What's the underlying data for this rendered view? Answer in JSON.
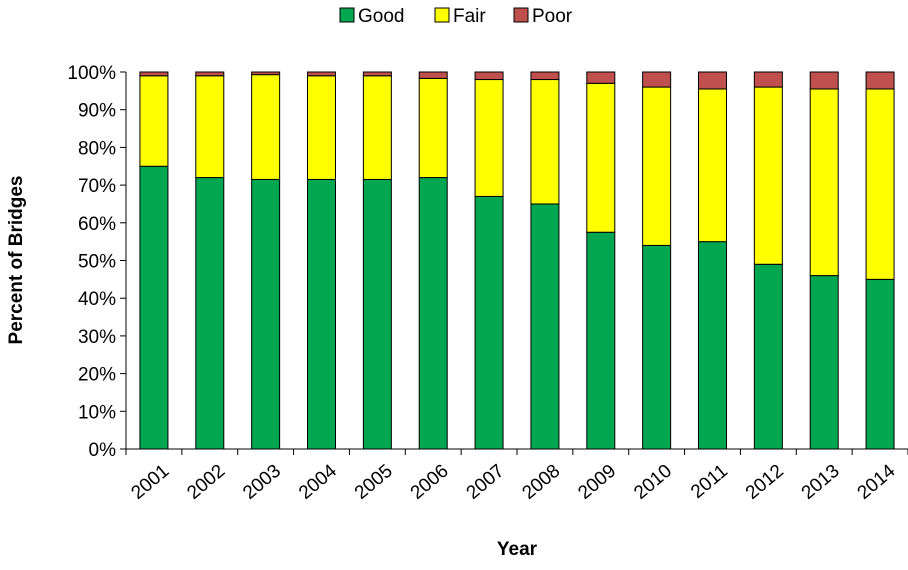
{
  "chart_data": {
    "type": "bar",
    "stacked": true,
    "xlabel": "Year",
    "ylabel": "Percent of Bridges",
    "ylim": [
      0,
      100
    ],
    "y_ticks": [
      "0%",
      "10%",
      "20%",
      "30%",
      "40%",
      "50%",
      "60%",
      "70%",
      "80%",
      "90%",
      "100%"
    ],
    "grid": false,
    "legend_position": "top",
    "categories": [
      "2001",
      "2002",
      "2003",
      "2004",
      "2005",
      "2006",
      "2007",
      "2008",
      "2009",
      "2010",
      "2011",
      "2012",
      "2013",
      "2014"
    ],
    "series": [
      {
        "name": "Good",
        "color": "#00a650",
        "values": [
          75,
          72,
          71.5,
          71.5,
          71.5,
          72,
          67,
          65,
          57.5,
          54,
          55,
          49,
          46,
          45
        ]
      },
      {
        "name": "Fair",
        "color": "#ffff00",
        "values": [
          24,
          27,
          27.8,
          27.5,
          27.5,
          26.3,
          31,
          33,
          39.5,
          42,
          40.5,
          47,
          49.5,
          50.5
        ]
      },
      {
        "name": "Poor",
        "color": "#c0504d",
        "values": [
          1,
          1,
          0.7,
          1,
          1,
          1.7,
          2,
          2,
          3,
          4,
          4.5,
          4,
          4.5,
          4.5
        ]
      }
    ]
  }
}
